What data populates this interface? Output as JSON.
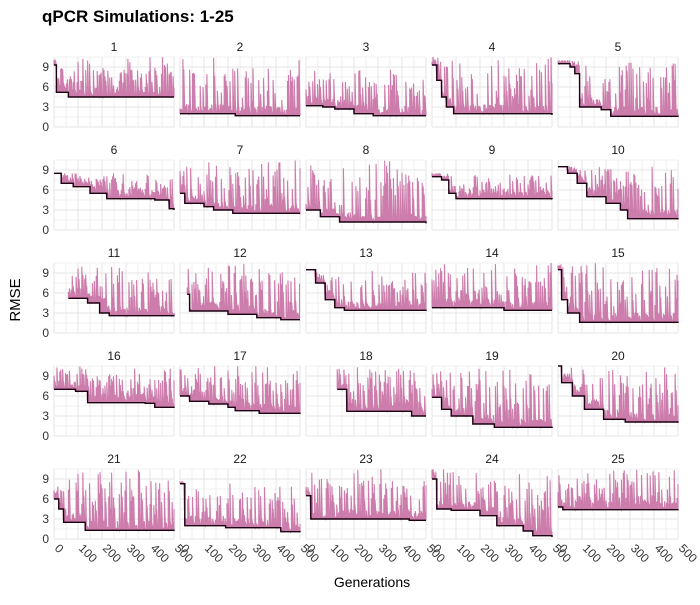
{
  "chart_data": {
    "type": "line",
    "title": "qPCR Simulations: 1-25",
    "xlabel": "Generations",
    "ylabel": "RMSE",
    "xlim": [
      0,
      500
    ],
    "ylim": [
      0,
      10.5
    ],
    "x_ticks": [
      0,
      100,
      200,
      300,
      400,
      500
    ],
    "y_ticks": [
      0,
      3,
      6,
      9
    ],
    "grid": true,
    "layout": "5x5 small multiples",
    "series_colors": {
      "per_generation_rmse": "#c86fa3",
      "best_rmse": "#1a0010"
    },
    "panels": [
      {
        "label": "1",
        "start": 0,
        "max_y": 10.5,
        "best": [
          [
            0,
            9.3
          ],
          [
            10,
            5.2
          ],
          [
            60,
            4.5
          ],
          [
            500,
            4.5
          ]
        ]
      },
      {
        "label": "2",
        "start": 0,
        "max_y": 10.5,
        "best": [
          [
            0,
            2.0
          ],
          [
            230,
            1.7
          ],
          [
            500,
            1.7
          ]
        ]
      },
      {
        "label": "3",
        "start": 0,
        "max_y": 9.0,
        "best": [
          [
            0,
            3.2
          ],
          [
            70,
            3.0
          ],
          [
            120,
            2.7
          ],
          [
            200,
            2.0
          ],
          [
            280,
            1.7
          ],
          [
            500,
            1.7
          ]
        ]
      },
      {
        "label": "4",
        "start": 0,
        "max_y": 10.5,
        "best": [
          [
            0,
            9.3
          ],
          [
            20,
            7.0
          ],
          [
            40,
            4.5
          ],
          [
            60,
            3.0
          ],
          [
            90,
            2.0
          ],
          [
            500,
            1.8
          ]
        ]
      },
      {
        "label": "5",
        "start": 0,
        "max_y": 10.0,
        "best": [
          [
            0,
            9.5
          ],
          [
            50,
            9.0
          ],
          [
            70,
            8.0
          ],
          [
            90,
            3.0
          ],
          [
            180,
            2.6
          ],
          [
            220,
            1.6
          ],
          [
            500,
            1.5
          ]
        ]
      },
      {
        "label": "6",
        "start": 0,
        "max_y": 8.5,
        "best": [
          [
            0,
            8.5
          ],
          [
            30,
            7.0
          ],
          [
            80,
            6.5
          ],
          [
            150,
            5.5
          ],
          [
            220,
            4.7
          ],
          [
            420,
            4.5
          ],
          [
            480,
            3.2
          ],
          [
            500,
            3.0
          ]
        ]
      },
      {
        "label": "7",
        "start": 0,
        "max_y": 10.5,
        "best": [
          [
            0,
            5.5
          ],
          [
            20,
            4.0
          ],
          [
            100,
            3.5
          ],
          [
            140,
            3.0
          ],
          [
            220,
            2.5
          ],
          [
            500,
            2.5
          ]
        ]
      },
      {
        "label": "8",
        "start": 0,
        "max_y": 10.5,
        "best": [
          [
            0,
            3.0
          ],
          [
            60,
            2.0
          ],
          [
            140,
            1.2
          ],
          [
            500,
            1.0
          ]
        ]
      },
      {
        "label": "9",
        "start": 0,
        "max_y": 8.5,
        "best": [
          [
            0,
            8.0
          ],
          [
            40,
            7.5
          ],
          [
            70,
            5.5
          ],
          [
            100,
            4.7
          ],
          [
            500,
            4.6
          ]
        ]
      },
      {
        "label": "10",
        "start": 0,
        "max_y": 9.5,
        "best": [
          [
            0,
            9.5
          ],
          [
            40,
            8.5
          ],
          [
            80,
            7.0
          ],
          [
            120,
            5.0
          ],
          [
            200,
            4.0
          ],
          [
            260,
            3.0
          ],
          [
            290,
            1.7
          ],
          [
            500,
            1.6
          ]
        ]
      },
      {
        "label": "11",
        "start": 60,
        "max_y": 10.5,
        "best": [
          [
            60,
            5.2
          ],
          [
            140,
            4.5
          ],
          [
            190,
            3.0
          ],
          [
            230,
            2.6
          ],
          [
            500,
            2.5
          ]
        ]
      },
      {
        "label": "12",
        "start": 30,
        "max_y": 10.5,
        "best": [
          [
            30,
            5.8
          ],
          [
            40,
            3.3
          ],
          [
            200,
            2.8
          ],
          [
            320,
            2.3
          ],
          [
            420,
            2.0
          ],
          [
            500,
            2.0
          ]
        ]
      },
      {
        "label": "13",
        "start": 0,
        "max_y": 9.5,
        "best": [
          [
            0,
            9.5
          ],
          [
            40,
            7.5
          ],
          [
            80,
            5.0
          ],
          [
            120,
            3.8
          ],
          [
            160,
            3.4
          ],
          [
            500,
            3.3
          ]
        ]
      },
      {
        "label": "14",
        "start": 0,
        "max_y": 10.5,
        "best": [
          [
            0,
            3.8
          ],
          [
            300,
            3.4
          ],
          [
            500,
            3.4
          ]
        ]
      },
      {
        "label": "15",
        "start": 0,
        "max_y": 10.5,
        "best": [
          [
            0,
            9.5
          ],
          [
            15,
            5.0
          ],
          [
            40,
            3.0
          ],
          [
            90,
            1.6
          ],
          [
            500,
            1.5
          ]
        ]
      },
      {
        "label": "16",
        "start": 0,
        "max_y": 10.5,
        "best": [
          [
            0,
            7.0
          ],
          [
            90,
            6.7
          ],
          [
            140,
            5.0
          ],
          [
            380,
            4.9
          ],
          [
            420,
            4.3
          ],
          [
            500,
            4.2
          ]
        ]
      },
      {
        "label": "17",
        "start": 0,
        "max_y": 10.5,
        "best": [
          [
            0,
            6.0
          ],
          [
            40,
            5.2
          ],
          [
            120,
            4.8
          ],
          [
            200,
            4.3
          ],
          [
            230,
            3.8
          ],
          [
            330,
            3.4
          ],
          [
            500,
            3.3
          ]
        ]
      },
      {
        "label": "18",
        "start": 130,
        "max_y": 10.5,
        "best": [
          [
            130,
            7.0
          ],
          [
            170,
            3.7
          ],
          [
            440,
            3.0
          ],
          [
            500,
            3.0
          ]
        ]
      },
      {
        "label": "19",
        "start": 0,
        "max_y": 10.5,
        "best": [
          [
            0,
            5.8
          ],
          [
            40,
            4.0
          ],
          [
            80,
            3.0
          ],
          [
            170,
            1.8
          ],
          [
            260,
            1.3
          ],
          [
            500,
            1.2
          ]
        ]
      },
      {
        "label": "20",
        "start": 0,
        "max_y": 10.5,
        "best": [
          [
            0,
            10.5
          ],
          [
            15,
            8.0
          ],
          [
            60,
            6.0
          ],
          [
            110,
            4.0
          ],
          [
            190,
            2.5
          ],
          [
            280,
            2.1
          ],
          [
            500,
            2.0
          ]
        ]
      },
      {
        "label": "21",
        "start": 0,
        "max_y": 10.5,
        "best": [
          [
            0,
            6.0
          ],
          [
            20,
            4.5
          ],
          [
            40,
            2.5
          ],
          [
            130,
            1.3
          ],
          [
            500,
            1.2
          ]
        ]
      },
      {
        "label": "22",
        "start": 0,
        "max_y": 8.5,
        "best": [
          [
            0,
            8.3
          ],
          [
            20,
            2.0
          ],
          [
            190,
            1.7
          ],
          [
            420,
            1.1
          ],
          [
            500,
            1.0
          ]
        ]
      },
      {
        "label": "23",
        "start": 0,
        "max_y": 10.5,
        "best": [
          [
            0,
            6.5
          ],
          [
            20,
            3.0
          ],
          [
            430,
            2.8
          ],
          [
            500,
            2.8
          ]
        ]
      },
      {
        "label": "24",
        "start": 0,
        "max_y": 10.5,
        "best": [
          [
            0,
            9.0
          ],
          [
            20,
            4.5
          ],
          [
            80,
            4.3
          ],
          [
            200,
            3.5
          ],
          [
            270,
            2.0
          ],
          [
            380,
            1.2
          ],
          [
            420,
            0.5
          ],
          [
            500,
            0.3
          ]
        ]
      },
      {
        "label": "25",
        "start": 0,
        "max_y": 10.5,
        "best": [
          [
            0,
            4.8
          ],
          [
            20,
            4.4
          ],
          [
            500,
            4.3
          ]
        ]
      }
    ]
  }
}
